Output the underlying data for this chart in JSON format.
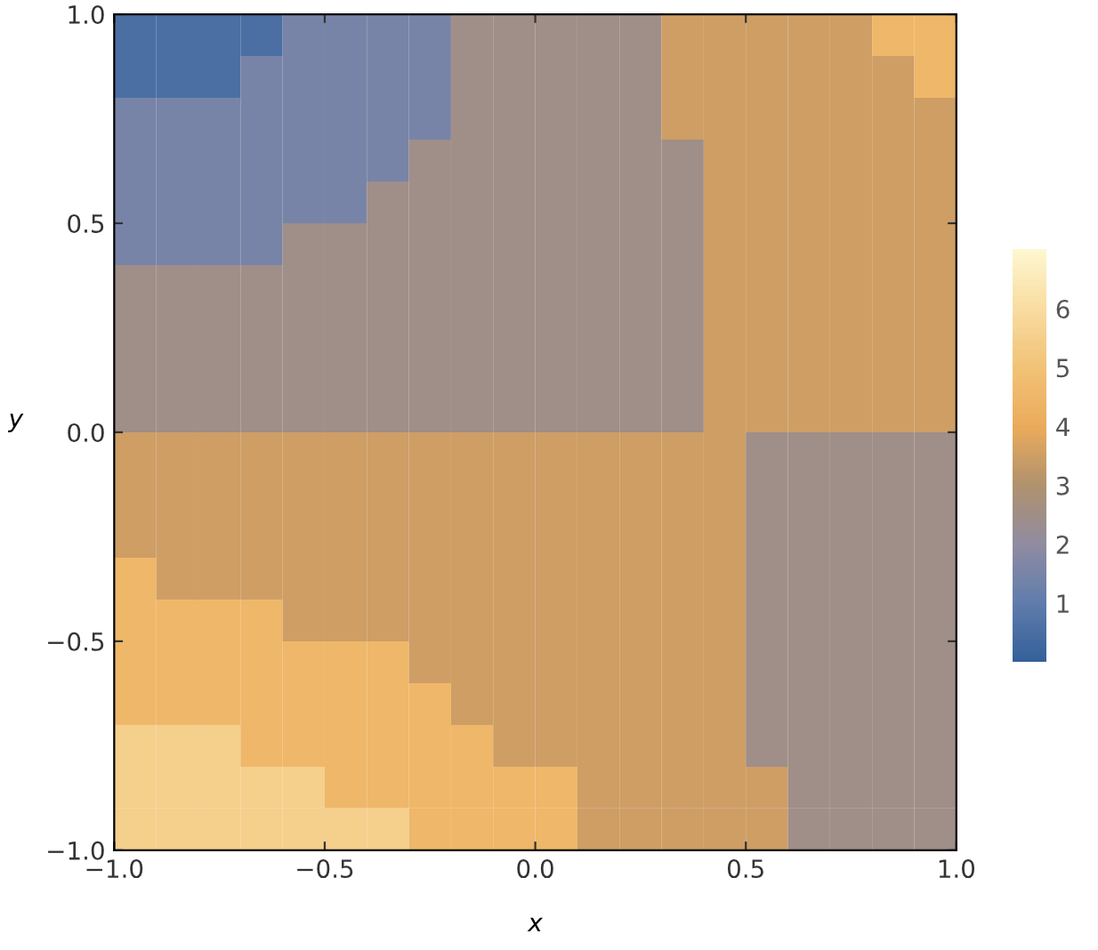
{
  "chart_data": {
    "type": "heatmap",
    "xlabel": "x",
    "ylabel": "y",
    "x": [
      -0.95,
      -0.85,
      -0.75,
      -0.65,
      -0.55,
      -0.45,
      -0.35,
      -0.25,
      -0.15,
      -0.05,
      0.05,
      0.15,
      0.25,
      0.35,
      0.45,
      0.55,
      0.65,
      0.75,
      0.85,
      0.95
    ],
    "y": [
      0.95,
      0.85,
      0.75,
      0.65,
      0.55,
      0.45,
      0.35,
      0.25,
      0.15,
      0.05,
      -0.05,
      -0.15,
      -0.25,
      -0.35,
      -0.45,
      -0.55,
      -0.65,
      -0.75,
      -0.85,
      -0.95
    ],
    "xlim": [
      -1,
      1
    ],
    "ylim": [
      -1,
      1
    ],
    "xticks": [
      {
        "value": -1,
        "label": "−1.0"
      },
      {
        "value": -0.5,
        "label": "−0.5"
      },
      {
        "value": 0,
        "label": "0.0"
      },
      {
        "value": 0.5,
        "label": "0.5"
      },
      {
        "value": 1,
        "label": "1.0"
      }
    ],
    "yticks": [
      {
        "value": -1,
        "label": "−1.0"
      },
      {
        "value": -0.5,
        "label": "−0.5"
      },
      {
        "value": 0,
        "label": "0.0"
      },
      {
        "value": 0.5,
        "label": "0.5"
      },
      {
        "value": 1,
        "label": "1.0"
      }
    ],
    "clim": [
      0,
      7
    ],
    "cticks": [
      1,
      2,
      3,
      4,
      5,
      6
    ],
    "colors": [
      "#1f4f8f",
      "#4f6fa3",
      "#857f97",
      "#a8865e",
      "#e9a24a",
      "#f0bc68",
      "#f8d896",
      "#fff6cc"
    ],
    "cells": [
      [
        0.5,
        0.5,
        0.5,
        0.5,
        1.5,
        1.5,
        1.5,
        1.5,
        2.5,
        2.5,
        2.5,
        2.5,
        2.5,
        3.5,
        3.5,
        3.5,
        3.5,
        3.5,
        4.5,
        4.5
      ],
      [
        0.5,
        0.5,
        0.5,
        1.5,
        1.5,
        1.5,
        1.5,
        1.5,
        2.5,
        2.5,
        2.5,
        2.5,
        2.5,
        3.5,
        3.5,
        3.5,
        3.5,
        3.5,
        3.5,
        4.5
      ],
      [
        1.5,
        1.5,
        1.5,
        1.5,
        1.5,
        1.5,
        1.5,
        1.5,
        2.5,
        2.5,
        2.5,
        2.5,
        2.5,
        3.5,
        3.5,
        3.5,
        3.5,
        3.5,
        3.5,
        3.5
      ],
      [
        1.5,
        1.5,
        1.5,
        1.5,
        1.5,
        1.5,
        1.5,
        2.5,
        2.5,
        2.5,
        2.5,
        2.5,
        2.5,
        2.5,
        3.5,
        3.5,
        3.5,
        3.5,
        3.5,
        3.5
      ],
      [
        1.5,
        1.5,
        1.5,
        1.5,
        1.5,
        1.5,
        2.5,
        2.5,
        2.5,
        2.5,
        2.5,
        2.5,
        2.5,
        2.5,
        3.5,
        3.5,
        3.5,
        3.5,
        3.5,
        3.5
      ],
      [
        1.5,
        1.5,
        1.5,
        1.5,
        2.5,
        2.5,
        2.5,
        2.5,
        2.5,
        2.5,
        2.5,
        2.5,
        2.5,
        2.5,
        3.5,
        3.5,
        3.5,
        3.5,
        3.5,
        3.5
      ],
      [
        2.5,
        2.5,
        2.5,
        2.5,
        2.5,
        2.5,
        2.5,
        2.5,
        2.5,
        2.5,
        2.5,
        2.5,
        2.5,
        2.5,
        3.5,
        3.5,
        3.5,
        3.5,
        3.5,
        3.5
      ],
      [
        2.5,
        2.5,
        2.5,
        2.5,
        2.5,
        2.5,
        2.5,
        2.5,
        2.5,
        2.5,
        2.5,
        2.5,
        2.5,
        2.5,
        3.5,
        3.5,
        3.5,
        3.5,
        3.5,
        3.5
      ],
      [
        2.5,
        2.5,
        2.5,
        2.5,
        2.5,
        2.5,
        2.5,
        2.5,
        2.5,
        2.5,
        2.5,
        2.5,
        2.5,
        2.5,
        3.5,
        3.5,
        3.5,
        3.5,
        3.5,
        3.5
      ],
      [
        2.5,
        2.5,
        2.5,
        2.5,
        2.5,
        2.5,
        2.5,
        2.5,
        2.5,
        2.5,
        2.5,
        2.5,
        2.5,
        2.5,
        3.5,
        3.5,
        3.5,
        3.5,
        3.5,
        3.5
      ],
      [
        3.5,
        3.5,
        3.5,
        3.5,
        3.5,
        3.5,
        3.5,
        3.5,
        3.5,
        3.5,
        3.5,
        3.5,
        3.5,
        3.5,
        3.5,
        2.5,
        2.5,
        2.5,
        2.5,
        2.5
      ],
      [
        3.5,
        3.5,
        3.5,
        3.5,
        3.5,
        3.5,
        3.5,
        3.5,
        3.5,
        3.5,
        3.5,
        3.5,
        3.5,
        3.5,
        3.5,
        2.5,
        2.5,
        2.5,
        2.5,
        2.5
      ],
      [
        3.5,
        3.5,
        3.5,
        3.5,
        3.5,
        3.5,
        3.5,
        3.5,
        3.5,
        3.5,
        3.5,
        3.5,
        3.5,
        3.5,
        3.5,
        2.5,
        2.5,
        2.5,
        2.5,
        2.5
      ],
      [
        4.5,
        3.5,
        3.5,
        3.5,
        3.5,
        3.5,
        3.5,
        3.5,
        3.5,
        3.5,
        3.5,
        3.5,
        3.5,
        3.5,
        3.5,
        2.5,
        2.5,
        2.5,
        2.5,
        2.5
      ],
      [
        4.5,
        4.5,
        4.5,
        4.5,
        3.5,
        3.5,
        3.5,
        3.5,
        3.5,
        3.5,
        3.5,
        3.5,
        3.5,
        3.5,
        3.5,
        2.5,
        2.5,
        2.5,
        2.5,
        2.5
      ],
      [
        4.5,
        4.5,
        4.5,
        4.5,
        4.5,
        4.5,
        4.5,
        3.5,
        3.5,
        3.5,
        3.5,
        3.5,
        3.5,
        3.5,
        3.5,
        2.5,
        2.5,
        2.5,
        2.5,
        2.5
      ],
      [
        4.5,
        4.5,
        4.5,
        4.5,
        4.5,
        4.5,
        4.5,
        4.5,
        3.5,
        3.5,
        3.5,
        3.5,
        3.5,
        3.5,
        3.5,
        2.5,
        2.5,
        2.5,
        2.5,
        2.5
      ],
      [
        5.5,
        5.5,
        5.5,
        4.5,
        4.5,
        4.5,
        4.5,
        4.5,
        4.5,
        3.5,
        3.5,
        3.5,
        3.5,
        3.5,
        3.5,
        2.5,
        2.5,
        2.5,
        2.5,
        2.5
      ],
      [
        5.5,
        5.5,
        5.5,
        5.5,
        5.5,
        4.5,
        4.5,
        4.5,
        4.5,
        4.5,
        4.5,
        3.5,
        3.5,
        3.5,
        3.5,
        3.5,
        2.5,
        2.5,
        2.5,
        2.5
      ],
      [
        5.5,
        5.5,
        5.5,
        5.5,
        5.5,
        5.5,
        5.5,
        4.5,
        4.5,
        4.5,
        4.5,
        3.5,
        3.5,
        3.5,
        3.5,
        3.5,
        2.5,
        2.5,
        2.5,
        2.5
      ]
    ]
  }
}
